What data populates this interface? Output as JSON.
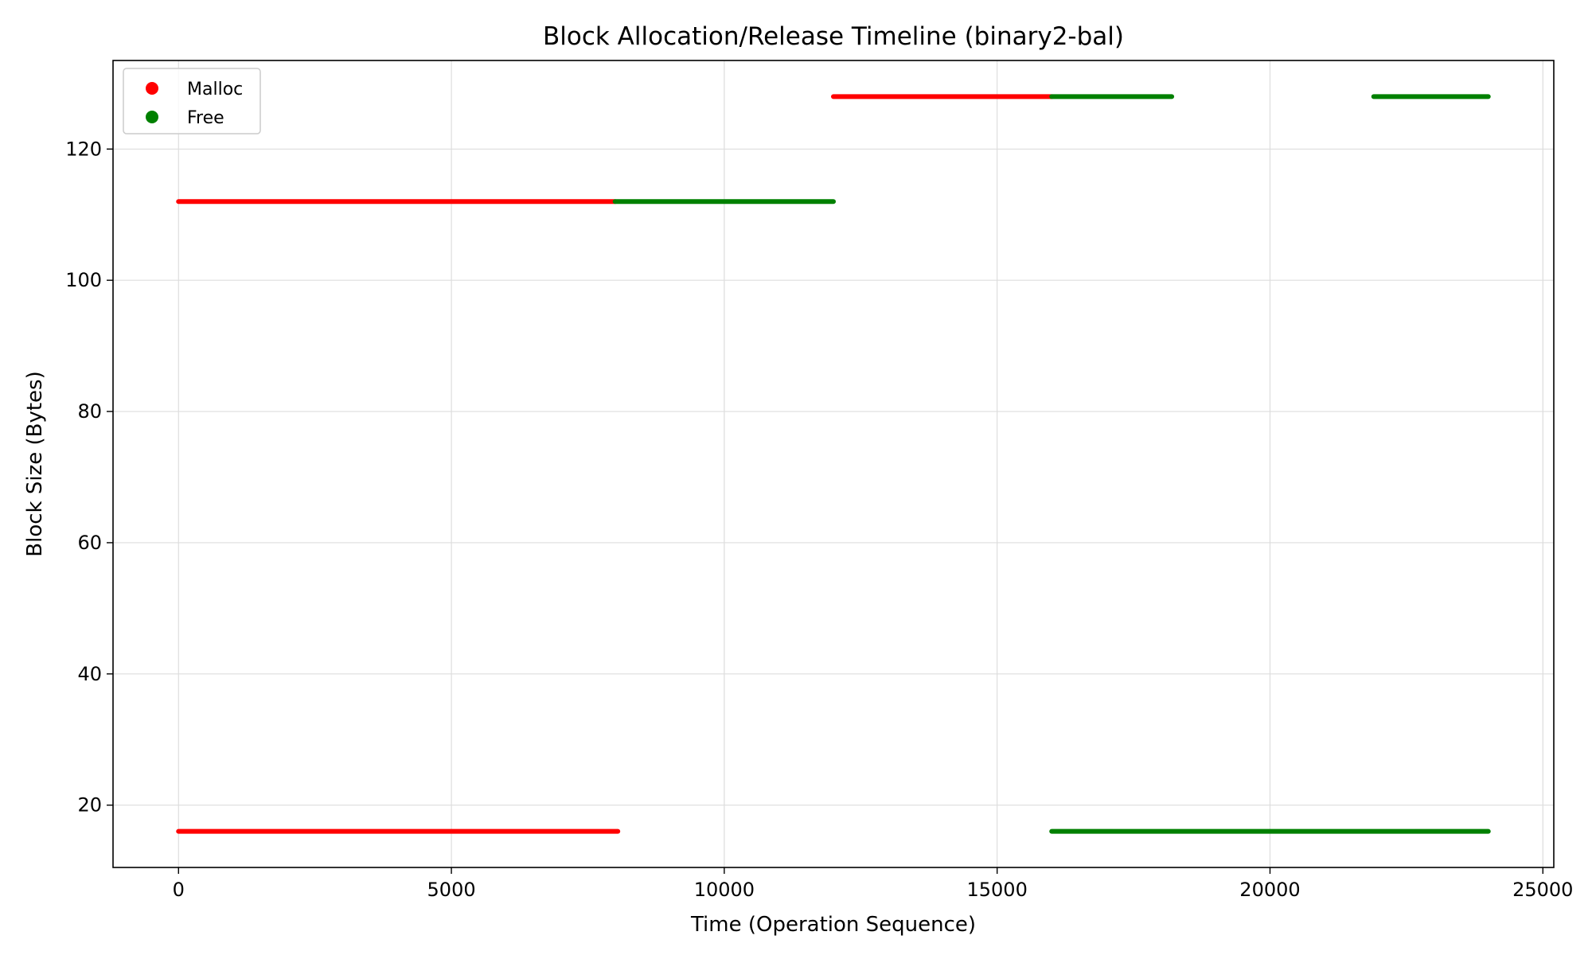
{
  "chart_data": {
    "type": "scatter",
    "title": "Block Allocation/Release Timeline (binary2-bal)",
    "xlabel": "Time (Operation Sequence)",
    "ylabel": "Block Size (Bytes)",
    "xlim": [
      -1200,
      25200
    ],
    "ylim": [
      10.5,
      133.5
    ],
    "xticks": [
      0,
      5000,
      10000,
      15000,
      20000,
      25000
    ],
    "xtick_labels": [
      "0",
      "5000",
      "10000",
      "15000",
      "20000",
      "25000"
    ],
    "yticks": [
      20,
      40,
      60,
      80,
      100,
      120
    ],
    "ytick_labels": [
      "20",
      "40",
      "60",
      "80",
      "100",
      "120"
    ],
    "grid": true,
    "legend_position": "top-left",
    "series": [
      {
        "name": "Malloc",
        "color": "#ff0000",
        "segments": [
          {
            "x_start": 0,
            "x_end": 8000,
            "y": 112
          },
          {
            "x_start": 0,
            "x_end": 8050,
            "y": 16
          },
          {
            "x_start": 12000,
            "x_end": 16000,
            "y": 128
          }
        ]
      },
      {
        "name": "Free",
        "color": "#008000",
        "segments": [
          {
            "x_start": 8000,
            "x_end": 12000,
            "y": 112
          },
          {
            "x_start": 16000,
            "x_end": 18200,
            "y": 128
          },
          {
            "x_start": 21900,
            "x_end": 24000,
            "y": 128
          },
          {
            "x_start": 16000,
            "x_end": 24000,
            "y": 16
          }
        ]
      }
    ]
  }
}
